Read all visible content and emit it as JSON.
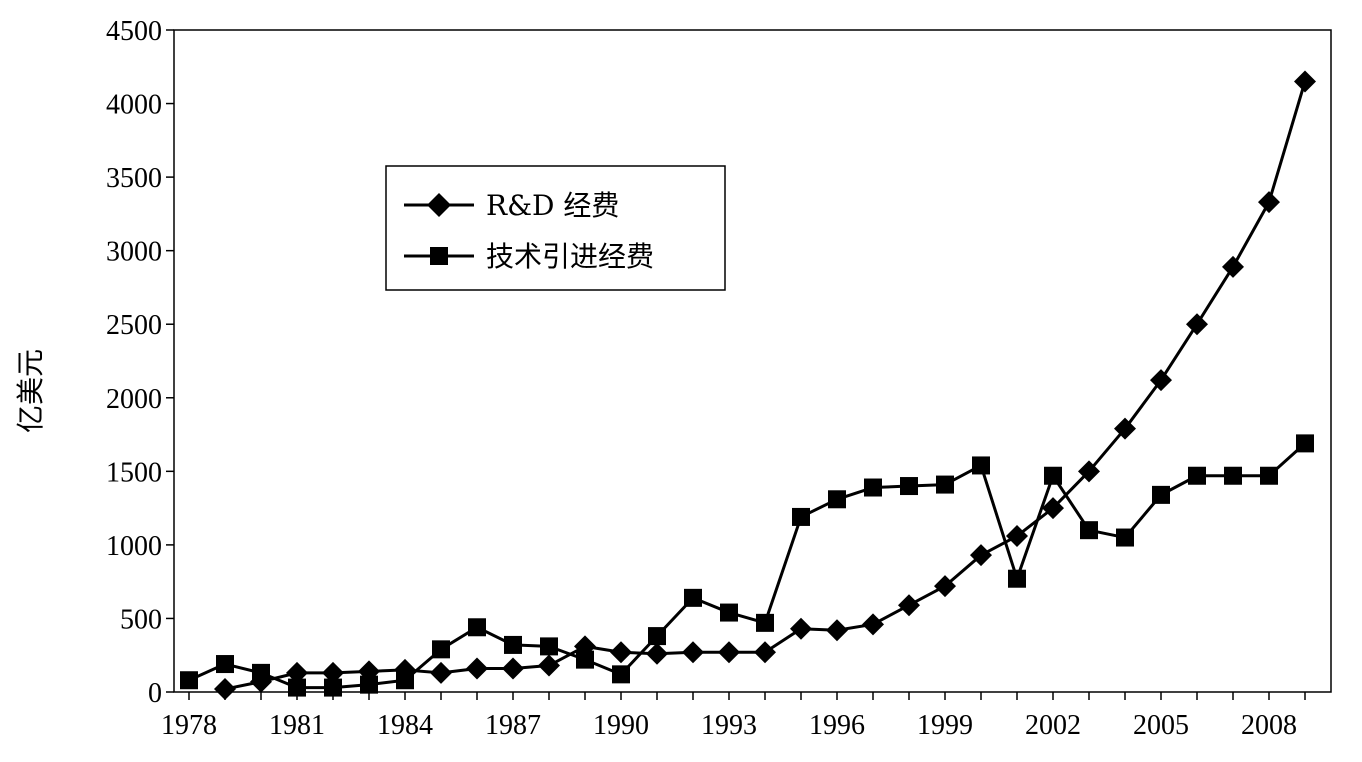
{
  "chart_data": {
    "type": "line",
    "title": "",
    "xlabel": "",
    "ylabel": "亿美元",
    "xlim": [
      1978,
      2009
    ],
    "ylim": [
      0,
      4500
    ],
    "y_ticks": [
      0,
      500,
      1000,
      1500,
      2000,
      2500,
      3000,
      3500,
      4000,
      4500
    ],
    "x_tick_labels": [
      "1978",
      "1981",
      "1984",
      "1987",
      "1990",
      "1993",
      "1996",
      "1999",
      "2002",
      "2005",
      "2008"
    ],
    "grid": false,
    "legend_position": "upper-left",
    "x": [
      1978,
      1979,
      1980,
      1981,
      1982,
      1983,
      1984,
      1985,
      1986,
      1987,
      1988,
      1989,
      1990,
      1991,
      1992,
      1993,
      1994,
      1995,
      1996,
      1997,
      1998,
      1999,
      2000,
      2001,
      2002,
      2003,
      2004,
      2005,
      2006,
      2007,
      2008,
      2009
    ],
    "series": [
      {
        "name": "R&D 经费",
        "marker": "diamond",
        "color": "#000000",
        "values": [
          null,
          20,
          70,
          130,
          130,
          140,
          150,
          130,
          160,
          160,
          180,
          310,
          270,
          260,
          270,
          270,
          270,
          430,
          420,
          460,
          590,
          720,
          930,
          1060,
          1250,
          1500,
          1790,
          2120,
          2500,
          2890,
          3330,
          4150
        ]
      },
      {
        "name": "技术引进经费",
        "marker": "square",
        "color": "#000000",
        "values": [
          80,
          190,
          130,
          30,
          30,
          50,
          80,
          290,
          440,
          320,
          310,
          220,
          120,
          380,
          640,
          540,
          470,
          1190,
          1310,
          1390,
          1400,
          1410,
          1540,
          770,
          1470,
          1100,
          1050,
          1340,
          1470,
          1470,
          1470,
          1690
        ]
      }
    ]
  }
}
